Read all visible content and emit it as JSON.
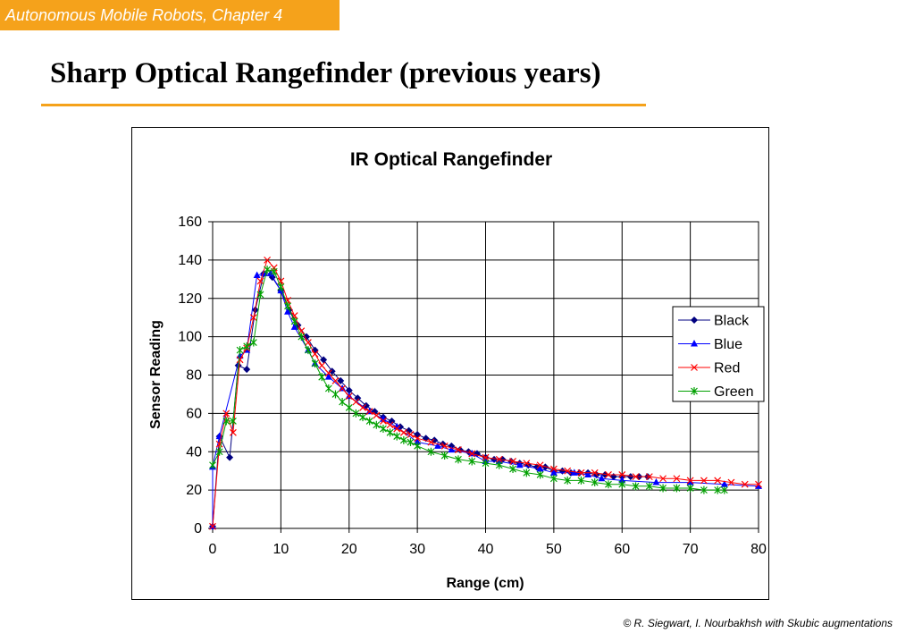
{
  "header": {
    "chapter": "Autonomous Mobile Robots, Chapter 4",
    "title": "Sharp Optical Rangefinder (previous years)"
  },
  "footer": {
    "credit": "© R. Siegwart, I. Nourbakhsh with Skubic augmentations"
  },
  "colors": {
    "accent": "#f5a21b",
    "black_series": "#000080",
    "blue_series": "#0000ff",
    "red_series": "#ff0000",
    "green_series": "#00a000"
  },
  "chart_data": {
    "type": "line",
    "title": "IR Optical Rangefinder",
    "xlabel": "Range (cm)",
    "ylabel": "Sensor Reading",
    "xlim": [
      0,
      80
    ],
    "ylim": [
      0,
      160
    ],
    "xticks": [
      0,
      10,
      20,
      30,
      40,
      50,
      60,
      70,
      80
    ],
    "yticks": [
      0,
      20,
      40,
      60,
      80,
      100,
      120,
      140,
      160
    ],
    "grid": true,
    "legend": "right",
    "series": [
      {
        "name": "Black",
        "color": "#000080",
        "marker": "diamond",
        "x": [
          0,
          1,
          2.5,
          3.75,
          5,
          6.25,
          7.5,
          8.75,
          10,
          11.25,
          12.5,
          13.75,
          15,
          16.25,
          17.5,
          18.75,
          20,
          21.25,
          22.5,
          23.75,
          25,
          26.25,
          27.5,
          28.75,
          30,
          31.25,
          32.5,
          33.75,
          35,
          36.25,
          37.5,
          38.75,
          40,
          41.25,
          42.5,
          43.75,
          45,
          46.25,
          47.5,
          48.75,
          50,
          51.25,
          52.5,
          53.75,
          55,
          56.25,
          57.5,
          58.75,
          60,
          61.25,
          62.5,
          63.75
        ],
        "y": [
          1,
          48,
          37,
          85,
          83,
          114,
          133,
          131,
          124,
          114,
          106,
          100,
          93,
          88,
          82,
          77,
          72,
          68,
          64,
          61,
          58,
          56,
          53,
          51,
          49,
          47,
          46,
          44,
          43,
          41,
          40,
          39,
          37,
          36,
          36,
          35,
          34,
          33,
          32,
          32,
          30,
          30,
          29,
          29,
          29,
          28,
          28,
          27,
          27,
          27,
          27,
          27
        ]
      },
      {
        "name": "Blue",
        "color": "#0000ff",
        "marker": "triangle",
        "x": [
          0,
          0,
          1,
          4,
          5,
          6.5,
          7.5,
          8.5,
          10,
          11,
          12,
          14,
          15,
          17,
          19,
          20,
          23,
          25,
          27,
          30,
          33,
          35,
          38,
          40,
          42,
          45,
          48,
          50,
          53,
          55,
          57,
          60,
          65,
          70,
          75,
          80
        ],
        "y": [
          1,
          32,
          48,
          90,
          93,
          132,
          133,
          133,
          124,
          113,
          105,
          93,
          86,
          79,
          73,
          69,
          61,
          57,
          53,
          45,
          43,
          41,
          39,
          35,
          35,
          33,
          31,
          29,
          29,
          28,
          26,
          25,
          24,
          24,
          23,
          22
        ]
      },
      {
        "name": "Red",
        "color": "#ff0000",
        "marker": "x",
        "x": [
          0,
          1,
          2,
          3,
          4,
          5,
          6,
          7,
          8,
          9,
          10,
          11,
          12,
          13,
          14,
          15,
          16,
          17,
          18,
          19,
          20,
          21,
          22,
          23,
          24,
          25,
          26,
          27,
          28,
          29,
          30,
          32,
          34,
          36,
          38,
          40,
          42,
          44,
          46,
          48,
          50,
          52,
          54,
          56,
          58,
          60,
          62,
          64,
          66,
          68,
          70,
          72,
          74,
          76,
          78,
          80
        ],
        "y": [
          1,
          44,
          60,
          50,
          88,
          94,
          110,
          129,
          140,
          136,
          129,
          119,
          111,
          103,
          97,
          91,
          85,
          81,
          77,
          73,
          69,
          66,
          63,
          61,
          59,
          56,
          54,
          52,
          50,
          49,
          47,
          45,
          43,
          41,
          39,
          37,
          36,
          35,
          34,
          33,
          31,
          30,
          29,
          29,
          28,
          28,
          27,
          27,
          26,
          26,
          25,
          25,
          25,
          24,
          23,
          23
        ]
      },
      {
        "name": "Green",
        "color": "#00a000",
        "marker": "asterisk",
        "x": [
          0,
          1,
          2,
          3,
          4,
          5,
          6,
          7,
          8,
          9,
          10,
          11,
          12,
          13,
          14,
          15,
          16,
          17,
          18,
          19,
          20,
          21,
          22,
          23,
          24,
          25,
          26,
          27,
          28,
          29,
          30,
          32,
          34,
          36,
          38,
          40,
          42,
          44,
          46,
          48,
          50,
          52,
          54,
          56,
          58,
          60,
          62,
          64,
          66,
          68,
          70,
          72,
          74,
          75
        ],
        "y": [
          33,
          40,
          56,
          56,
          93,
          95,
          97,
          122,
          135,
          134,
          126,
          116,
          108,
          100,
          93,
          86,
          79,
          73,
          70,
          66,
          63,
          60,
          58,
          56,
          54,
          52,
          50,
          48,
          46,
          45,
          43,
          40,
          38,
          36,
          35,
          34,
          33,
          31,
          29,
          28,
          26,
          25,
          25,
          24,
          23,
          23,
          22,
          22,
          21,
          21,
          21,
          20,
          20,
          20
        ]
      }
    ]
  }
}
